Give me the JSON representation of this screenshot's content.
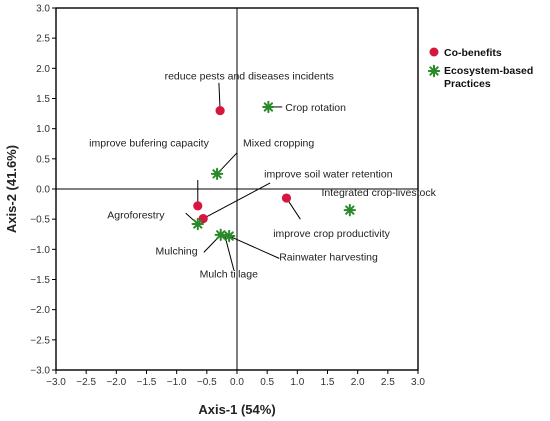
{
  "chart_data": {
    "type": "scatter",
    "xlabel": "Axis-1 (54%)",
    "ylabel": "Axis-2 (41.6%)",
    "xlim": [
      -3.0,
      3.0
    ],
    "ylim": [
      -3.0,
      3.0
    ],
    "x_ticks": [
      "−3.0",
      "−2.5",
      "−2.0",
      "−1.5",
      "−1.0",
      "−0.5",
      "0.0",
      "0.5",
      "1.0",
      "1.5",
      "2.0",
      "2.5",
      "3.0"
    ],
    "y_ticks": [
      "3.0",
      "2.5",
      "2.0",
      "1.5",
      "1.0",
      "0.5",
      "0.0",
      "−0.5",
      "−1.0",
      "−1.5",
      "−2.0",
      "−2.5",
      "−3.0"
    ],
    "legend_position": "right",
    "series": [
      {
        "name": "Co-benefits",
        "marker": "circle",
        "color": "#d6163f",
        "points": [
          {
            "x": -0.28,
            "y": 1.3
          },
          {
            "x": -0.65,
            "y": -0.28
          },
          {
            "x": -0.56,
            "y": -0.49
          },
          {
            "x": 0.82,
            "y": -0.15
          }
        ]
      },
      {
        "name": "Ecosystem-based Practices",
        "marker": "star",
        "color": "#2a8a2a",
        "points": [
          {
            "x": 0.52,
            "y": 1.36
          },
          {
            "x": -0.33,
            "y": 0.25
          },
          {
            "x": -0.65,
            "y": -0.58
          },
          {
            "x": -0.27,
            "y": -0.76
          },
          {
            "x": -0.13,
            "y": -0.78
          },
          {
            "x": 1.87,
            "y": -0.35
          }
        ]
      }
    ],
    "annotations": [
      {
        "text": "reduce pests and diseases incidents",
        "point": [
          -0.28,
          1.3
        ],
        "anchor": [
          -0.3,
          1.76
        ],
        "label_pos": [
          -1.2,
          1.88
        ]
      },
      {
        "text": "Crop rotation",
        "point": [
          0.52,
          1.36
        ],
        "anchor": [
          0.75,
          1.36
        ],
        "label_pos": [
          0.8,
          1.36
        ]
      },
      {
        "text": "Mixed cropping",
        "point": [
          -0.33,
          0.25
        ],
        "anchor": [
          0.0,
          0.6
        ],
        "label_pos": [
          0.1,
          0.77
        ]
      },
      {
        "text": "improve bufering capacity",
        "point": [
          -0.65,
          -0.28
        ],
        "anchor": [
          -0.65,
          0.15
        ],
        "label_pos": [
          -2.45,
          0.77
        ]
      },
      {
        "text": "improve soil water retention",
        "point": [
          -0.56,
          -0.49
        ],
        "anchor": [
          0.55,
          0.1
        ],
        "label_pos": [
          0.45,
          0.26
        ]
      },
      {
        "text": "Integrated crop-livestock",
        "point": [
          1.87,
          -0.35
        ],
        "anchor": [
          1.87,
          -0.35
        ],
        "label_pos": [
          1.4,
          -0.05
        ]
      },
      {
        "text": "improve crop productivity",
        "point": [
          0.82,
          -0.15
        ],
        "anchor": [
          1.05,
          -0.5
        ],
        "label_pos": [
          0.6,
          -0.73
        ]
      },
      {
        "text": "Agroforestry",
        "point": [
          -0.65,
          -0.58
        ],
        "anchor": [
          -0.85,
          -0.4
        ],
        "label_pos": [
          -2.15,
          -0.42
        ]
      },
      {
        "text": "Mulching",
        "point": [
          -0.27,
          -0.76
        ],
        "anchor": [
          -0.55,
          -1.05
        ],
        "label_pos": [
          -1.35,
          -1.02
        ]
      },
      {
        "text": "Mulch tillage",
        "point": [
          -0.2,
          -0.78
        ],
        "anchor": [
          -0.05,
          -1.35
        ],
        "label_pos": [
          -0.62,
          -1.4
        ]
      },
      {
        "text": "Rainwater harvesting",
        "point": [
          -0.13,
          -0.78
        ],
        "anchor": [
          0.7,
          -1.15
        ],
        "label_pos": [
          0.7,
          -1.12
        ]
      }
    ]
  }
}
